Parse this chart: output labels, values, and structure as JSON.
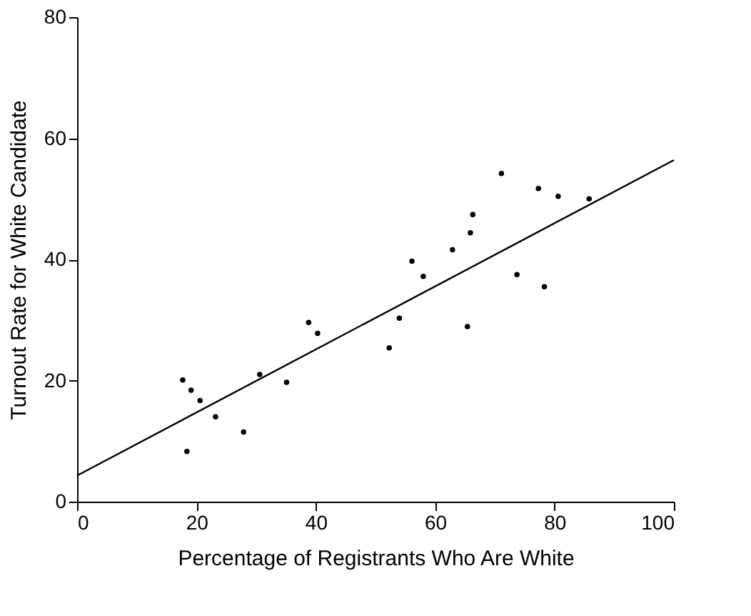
{
  "chart_data": {
    "type": "scatter",
    "xlabel": "Percentage of Registrants Who Are White",
    "ylabel": "Turnout Rate for White Candidate",
    "xlim": [
      0,
      100
    ],
    "ylim": [
      0,
      80
    ],
    "xticks": [
      0,
      20,
      40,
      60,
      80,
      100
    ],
    "yticks": [
      0,
      20,
      40,
      60,
      80
    ],
    "grid": false,
    "series": [
      {
        "marker": "circle",
        "color": "#000000",
        "x": [
          17.7,
          19.1,
          20.6,
          18.4,
          23.2,
          27.9,
          30.6,
          35.1,
          38.8,
          40.3,
          52.3,
          54.0,
          56.1,
          58.0,
          62.9,
          65.4,
          65.9,
          66.3,
          71.1,
          73.7,
          77.3,
          78.3,
          80.6,
          85.8
        ],
        "values": [
          20.1,
          18.4,
          16.7,
          8.3,
          14.0,
          11.5,
          21.0,
          19.7,
          29.6,
          27.8,
          25.4,
          30.3,
          39.7,
          37.2,
          41.6,
          28.9,
          44.4,
          47.4,
          54.2,
          37.5,
          51.7,
          35.5,
          50.4,
          50.0
        ]
      },
      {
        "type": "line",
        "color": "#000000",
        "line_style": "solid",
        "x": [
          0,
          100
        ],
        "values": [
          4.3,
          56.4
        ]
      }
    ]
  }
}
